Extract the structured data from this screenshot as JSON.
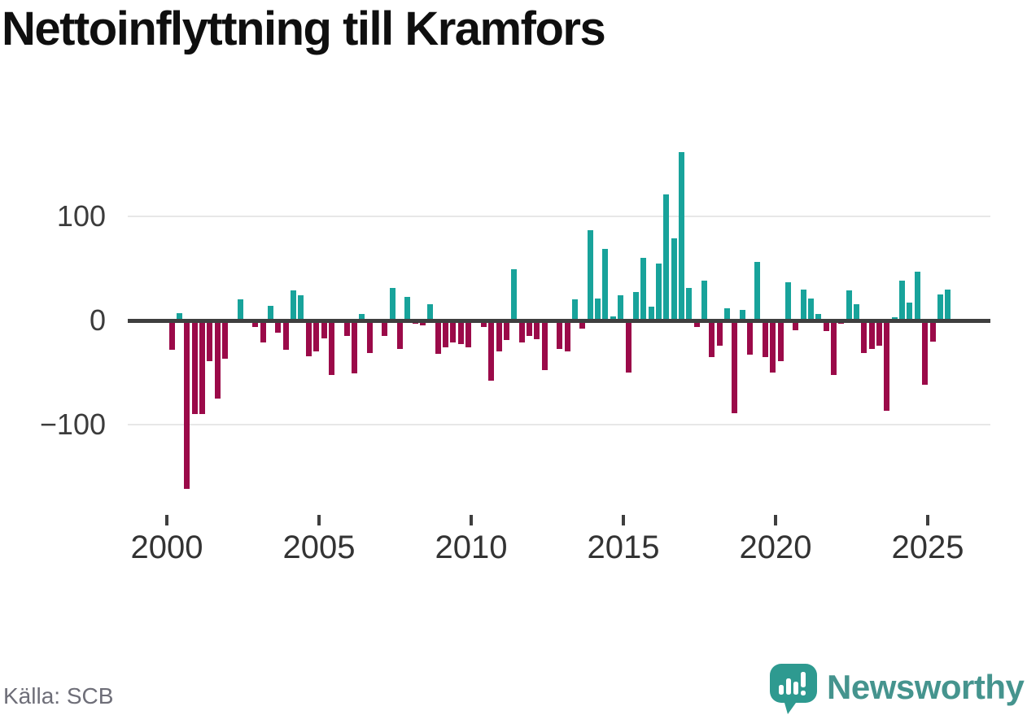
{
  "title": "Nettoinflyttning till Kramfors",
  "source": "Källa: SCB",
  "brand": {
    "name": "Newsworthy",
    "icon": "speech-bubble-bar-chart-icon"
  },
  "colors": {
    "positive": "#18a39b",
    "negative": "#9b0a49",
    "zero_line": "#3f3f3f",
    "gridline": "#e7e7e7",
    "axis_text": "#3c3c3c",
    "title_text": "#0f0f0f",
    "source_text": "#6e6e78",
    "brand_teal": "#45948e"
  },
  "chart_data": {
    "type": "bar",
    "title": "Nettoinflyttning till Kramfors",
    "ylabel": "",
    "xlabel": "",
    "unit": "net migration per quarter (persons)",
    "frequency": "quarterly",
    "start": "2000-Q1",
    "end": "2025-Q3",
    "grid": "horizontal",
    "legend": "none",
    "ylim": [
      -175,
      175
    ],
    "y_ticks": [
      100,
      0,
      -100
    ],
    "y_tick_labels": [
      "100",
      "0",
      "−100"
    ],
    "x_tick_labels": [
      "2000",
      "2005",
      "2010",
      "2015",
      "2020",
      "2025"
    ],
    "series": [
      {
        "name": "Nettoinflyttning",
        "values": [
          -28,
          7,
          -162,
          -90,
          -90,
          -39,
          -75,
          -37,
          0,
          20,
          0,
          -6,
          -21,
          14,
          -12,
          -28,
          29,
          24,
          -34,
          -30,
          -17,
          -52,
          0,
          -15,
          -51,
          6,
          -31,
          0,
          -15,
          31,
          -27,
          23,
          -3,
          -5,
          16,
          -32,
          -26,
          -21,
          -23,
          -26,
          0,
          -6,
          -58,
          -30,
          -19,
          49,
          -21,
          -15,
          -18,
          -48,
          0,
          -27,
          -30,
          20,
          -8,
          87,
          21,
          69,
          4,
          24,
          -50,
          27,
          60,
          13,
          55,
          121,
          79,
          162,
          31,
          -6,
          38,
          -35,
          -24,
          12,
          -89,
          10,
          -33,
          56,
          -35,
          -50,
          -39,
          37,
          -9,
          30,
          21,
          6,
          -10,
          -52,
          -3,
          29,
          16,
          -31,
          -27,
          -24,
          -87,
          3,
          38,
          17,
          47,
          -62,
          -20,
          25,
          30
        ]
      }
    ]
  }
}
